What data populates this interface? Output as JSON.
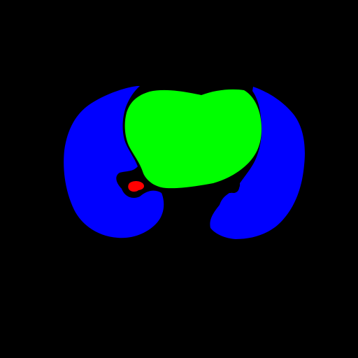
{
  "colors": {
    "background": "#000000",
    "left_region": "#0000ff",
    "right_region": "#0000ff",
    "center_region": "#00ff00",
    "small_region": "#ff0000"
  }
}
